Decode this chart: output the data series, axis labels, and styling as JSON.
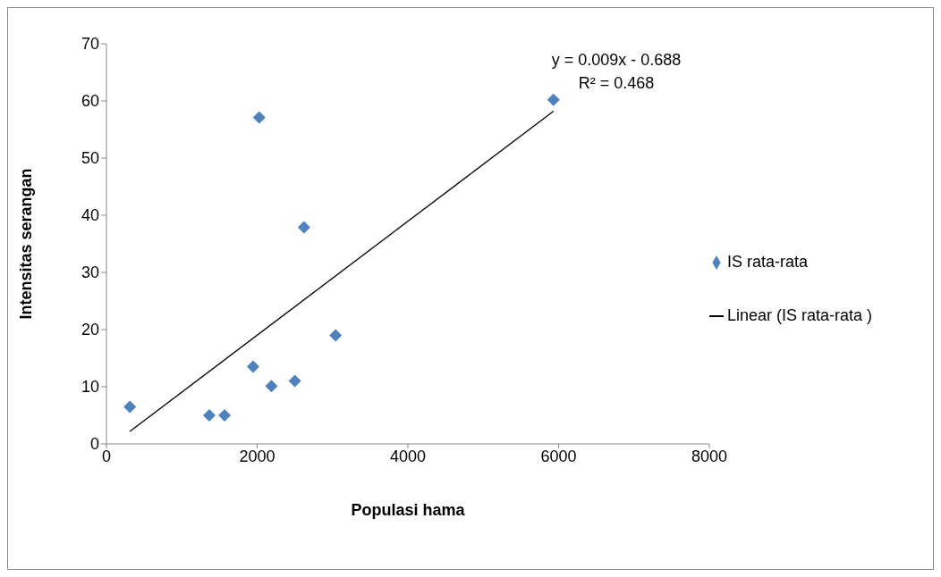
{
  "chart_data": {
    "type": "scatter",
    "xlabel": "Populasi hama",
    "ylabel": "Intensitas serangan",
    "xlim": [
      0,
      8000
    ],
    "xticks": [
      0,
      2000,
      4000,
      6000,
      8000
    ],
    "ylim": [
      0,
      70
    ],
    "yticks": [
      0,
      10,
      20,
      30,
      40,
      50,
      60,
      70
    ],
    "grid": false,
    "legend": "right",
    "annotations": [
      "y = 0.009x - 0.688",
      "R² = 0.468"
    ],
    "series": [
      {
        "name": "IS rata-rata",
        "marker": "diamond",
        "color": "#4f81bd",
        "x": [
          311,
          1365,
          1568,
          1946,
          2027,
          2189,
          2500,
          2622,
          3041,
          5932
        ],
        "values": [
          6.5,
          5.0,
          5.0,
          13.5,
          57.1,
          10.1,
          11.0,
          37.9,
          19.0,
          60.2
        ]
      },
      {
        "name": "Linear (IS rata-rata )",
        "type": "line",
        "color": "#000000",
        "x": [
          311,
          5932
        ],
        "values": [
          2.2,
          58.2
        ],
        "line_style": "solid",
        "marker": "none"
      }
    ]
  }
}
